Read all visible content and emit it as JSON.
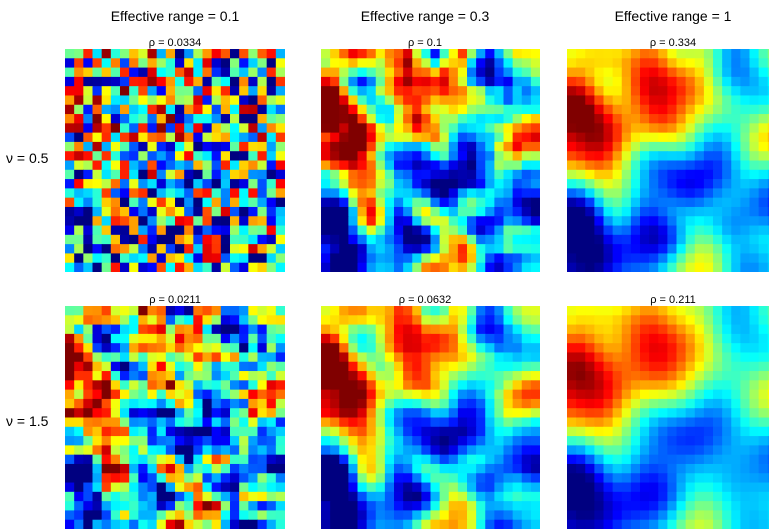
{
  "chart_data": {
    "type": "heatmap",
    "colormap": "jet",
    "grid": "24x24 cells per panel",
    "column_titles": [
      "Effective range = 0.1",
      "Effective range = 0.3",
      "Effective range = 1"
    ],
    "row_titles": [
      "ν = 0.5",
      "ν = 1.5"
    ],
    "panels": [
      {
        "row": 0,
        "col": 0,
        "title": "ρ = 0.0334"
      },
      {
        "row": 0,
        "col": 1,
        "title": "ρ = 0.1"
      },
      {
        "row": 0,
        "col": 2,
        "title": "ρ = 0.334"
      },
      {
        "row": 1,
        "col": 0,
        "title": "ρ = 0.0211"
      },
      {
        "row": 1,
        "col": 1,
        "title": "ρ = 0.0632"
      },
      {
        "row": 1,
        "col": 2,
        "title": "ρ = 0.211"
      }
    ]
  }
}
